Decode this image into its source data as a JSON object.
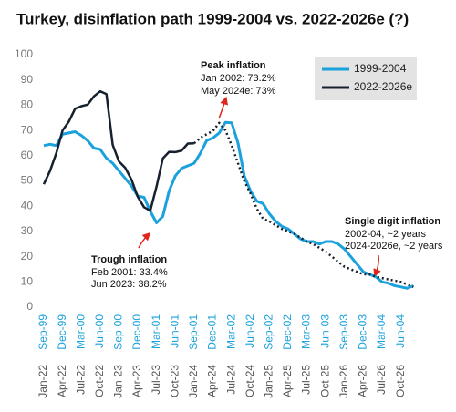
{
  "chart_data": {
    "type": "line",
    "title": "Turkey, disinflation path 1999-2004 vs. 2022-2026e (?)",
    "categories": [
      "Sep-99",
      null,
      null,
      "Dec-99",
      null,
      null,
      "Mar-00",
      null,
      null,
      "Jun-00",
      null,
      null,
      "Sep-00",
      null,
      null,
      "Dec-00",
      null,
      null,
      "Mar-01",
      null,
      null,
      "Jun-01",
      null,
      null,
      "Sep-01",
      null,
      null,
      "Dec-01",
      null,
      null,
      "Mar-02",
      null,
      null,
      "Jun-02",
      null,
      null,
      "Sep-02",
      null,
      null,
      "Dec-02",
      null,
      null,
      "Mar-03",
      null,
      null,
      "Jun-03",
      null,
      null,
      "Sep-03",
      null,
      null,
      "Dec-03",
      null,
      null,
      "Mar-04",
      null,
      null,
      "Jun-04",
      null,
      null
    ],
    "categories2": [
      "Jan-22",
      null,
      null,
      "Apr-22",
      null,
      null,
      "Jul-22",
      null,
      null,
      "Oct-22",
      null,
      null,
      "Jan-23",
      null,
      null,
      "Apr-23",
      null,
      null,
      "Jul-23",
      null,
      null,
      "Oct-23",
      null,
      null,
      "Jan-24",
      null,
      null,
      "Apr-24",
      null,
      null,
      "Jul-24",
      null,
      null,
      "Oct-24",
      null,
      null,
      "Jan-25",
      null,
      null,
      "Apr-25",
      null,
      null,
      "Jul-25",
      null,
      null,
      "Oct-25",
      null,
      null,
      "Jan-26",
      null,
      null,
      "Apr-26",
      null,
      null,
      "Jul-26",
      null,
      null,
      "Oct-26",
      null,
      null
    ],
    "series": [
      {
        "name": "1999-2004",
        "color": "#1ba1dc",
        "values": [
          64,
          64.5,
          64,
          68.5,
          69,
          69.5,
          68,
          66,
          63,
          62.5,
          59,
          57,
          54,
          51,
          48,
          44,
          43.5,
          38,
          33.4,
          36,
          46,
          52,
          55,
          56,
          57,
          61,
          66,
          67,
          69,
          73.2,
          73,
          65,
          52,
          46,
          42,
          41,
          37,
          34,
          32,
          31,
          29,
          27,
          26,
          26,
          25,
          26,
          26,
          25,
          23,
          20,
          17,
          14,
          13,
          12,
          10,
          9.5,
          8.5,
          8,
          7.5,
          8.5
        ]
      },
      {
        "name": "2022-2026e",
        "color": "#16202e",
        "dash_from": 24,
        "values": [
          48.7,
          54,
          61,
          70,
          73.5,
          78.6,
          79.6,
          80.2,
          83.5,
          85.5,
          84.4,
          64.3,
          57.7,
          55.2,
          50.5,
          43.7,
          39.6,
          38.2,
          47.8,
          58.9,
          61.5,
          61.4,
          62,
          64.8,
          64.9,
          67.1,
          68.5,
          69.8,
          73,
          70,
          64,
          57,
          50,
          45,
          39,
          35,
          34,
          32.5,
          31,
          30,
          29,
          27.5,
          26,
          25,
          23.5,
          22,
          20,
          18,
          16,
          15,
          14,
          13,
          13,
          12,
          11.5,
          11,
          10.5,
          10,
          9,
          8
        ]
      }
    ],
    "ylim": [
      0,
      100
    ],
    "yticks": [
      0,
      10,
      20,
      30,
      40,
      50,
      60,
      70,
      80,
      90,
      100
    ],
    "legend": "upper right",
    "annotations": [
      {
        "title": "Peak inflation",
        "lines": [
          "Jan 2002: 73.2%",
          "May 2024e: 73%"
        ]
      },
      {
        "title": "Trough inflation",
        "lines": [
          "Feb 2001: 33.4%",
          "Jun 2023: 38.2%"
        ]
      },
      {
        "title": "Single digit inflation",
        "lines": [
          "2002-04, ~2 years",
          "2024-2026e, ~2 years"
        ]
      }
    ]
  }
}
